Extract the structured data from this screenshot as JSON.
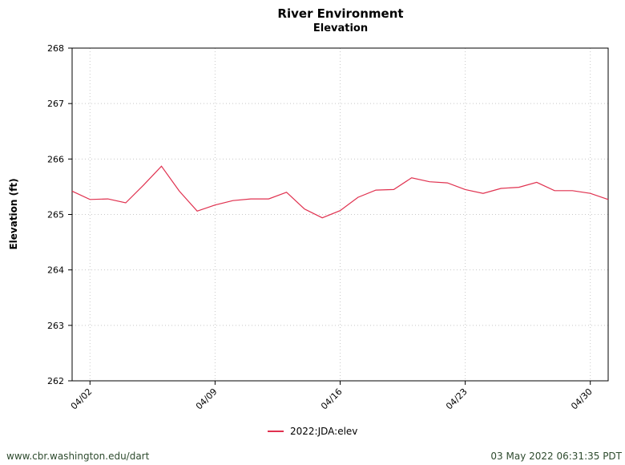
{
  "chart_data": {
    "type": "line",
    "title": "River Environment",
    "subtitle": "Elevation",
    "ylabel": "Elevation (ft)",
    "xlabel": "",
    "ylim": [
      262,
      268
    ],
    "y_ticks": [
      "262",
      "263",
      "264",
      "265",
      "266",
      "267",
      "268"
    ],
    "x_tick_labels": [
      "04/02",
      "04/09",
      "04/16",
      "04/23",
      "04/30"
    ],
    "x_range": [
      "04/01",
      "05/01"
    ],
    "grid": true,
    "legend_position": "bottom-center",
    "series": [
      {
        "name": "2022:JDA:elev",
        "color": "#e0314f",
        "x": [
          "04/01",
          "04/02",
          "04/03",
          "04/04",
          "04/05",
          "04/06",
          "04/07",
          "04/08",
          "04/09",
          "04/10",
          "04/11",
          "04/12",
          "04/13",
          "04/14",
          "04/15",
          "04/16",
          "04/17",
          "04/18",
          "04/19",
          "04/20",
          "04/21",
          "04/22",
          "04/23",
          "04/24",
          "04/25",
          "04/26",
          "04/27",
          "04/28",
          "04/29",
          "04/30",
          "05/01"
        ],
        "values": [
          265.42,
          265.27,
          265.28,
          265.21,
          265.53,
          265.87,
          265.42,
          265.06,
          265.17,
          265.25,
          265.28,
          265.28,
          265.4,
          265.1,
          264.94,
          265.07,
          265.31,
          265.44,
          265.45,
          265.66,
          265.59,
          265.57,
          265.45,
          265.38,
          265.47,
          265.49,
          265.58,
          265.43,
          265.43,
          265.38,
          265.27
        ]
      }
    ]
  },
  "footer": {
    "source": "www.cbr.washington.edu/dart",
    "timestamp": "03 May 2022 06:31:35 PDT"
  }
}
